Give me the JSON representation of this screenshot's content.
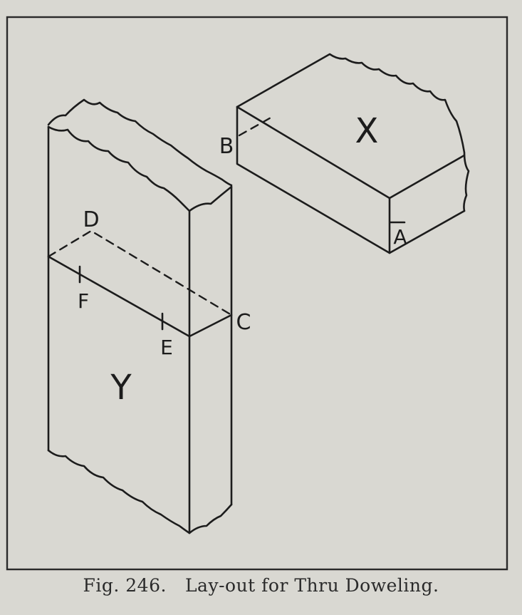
{
  "labels": {
    "x": "X",
    "y": "Y",
    "a": "A",
    "b": "B",
    "c": "C",
    "d": "D",
    "e": "E",
    "f": "F"
  },
  "caption": {
    "figure": "Fig. 246.",
    "title": "Lay-out for Thru Doweling."
  }
}
